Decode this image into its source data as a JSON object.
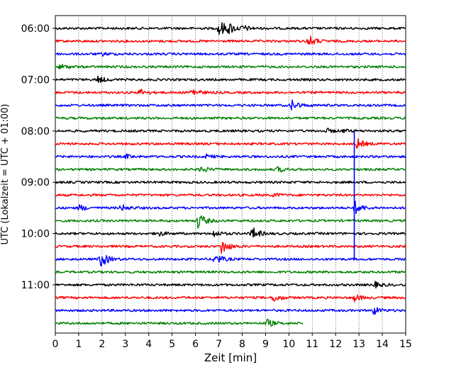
{
  "chart_data": {
    "type": "line",
    "title": "",
    "xlabel": "Zeit  [min]",
    "ylabel": "UTC (Lokalzeit = UTC + 01:00)",
    "xlim": [
      0,
      15
    ],
    "x_ticks": [
      "0",
      "1",
      "2",
      "3",
      "4",
      "5",
      "6",
      "7",
      "8",
      "9",
      "10",
      "11",
      "12",
      "13",
      "14",
      "15"
    ],
    "y_tick_labels": [
      "06:00",
      "07:00",
      "08:00",
      "09:00",
      "10:00",
      "11:00"
    ],
    "grid": "vertical-dotted",
    "trace_interval_minutes": 15,
    "trace_color_cycle": [
      "#000000",
      "#ff0000",
      "#0000ff",
      "#008000"
    ],
    "traces": [
      {
        "start": "06:00",
        "end_min": 15,
        "events": [
          {
            "t": 7.0,
            "amp": 14
          },
          {
            "t": 7.4,
            "amp": 7
          },
          {
            "t": 8.0,
            "amp": 4
          }
        ]
      },
      {
        "start": "06:15",
        "end_min": 15,
        "events": [
          {
            "t": 10.8,
            "amp": 10
          }
        ]
      },
      {
        "start": "06:30",
        "end_min": 15,
        "events": [
          {
            "t": 2.0,
            "amp": 2
          }
        ]
      },
      {
        "start": "06:45",
        "end_min": 15,
        "events": [
          {
            "t": 0.2,
            "amp": 4
          }
        ]
      },
      {
        "start": "07:00",
        "end_min": 15,
        "events": [
          {
            "t": 1.8,
            "amp": 5
          }
        ]
      },
      {
        "start": "07:15",
        "end_min": 15,
        "events": [
          {
            "t": 3.6,
            "amp": 5
          },
          {
            "t": 5.8,
            "amp": 7
          }
        ]
      },
      {
        "start": "07:30",
        "end_min": 15,
        "events": [
          {
            "t": 10.1,
            "amp": 8
          }
        ]
      },
      {
        "start": "07:45",
        "end_min": 15,
        "events": []
      },
      {
        "start": "08:00",
        "end_min": 15,
        "events": [
          {
            "t": 11.6,
            "amp": 3
          },
          {
            "t": 12.3,
            "amp": 2
          }
        ]
      },
      {
        "start": "08:15",
        "end_min": 15,
        "events": [
          {
            "t": 12.9,
            "amp": 7
          }
        ]
      },
      {
        "start": "08:30",
        "end_min": 15,
        "events": [
          {
            "t": 3.0,
            "amp": 3
          },
          {
            "t": 6.4,
            "amp": 3
          }
        ]
      },
      {
        "start": "08:45",
        "end_min": 15,
        "events": [
          {
            "t": 6.2,
            "amp": 5
          },
          {
            "t": 9.5,
            "amp": 4
          }
        ]
      },
      {
        "start": "09:00",
        "end_min": 15,
        "events": []
      },
      {
        "start": "09:15",
        "end_min": 15,
        "events": [
          {
            "t": 9.3,
            "amp": 3
          }
        ]
      },
      {
        "start": "09:30",
        "end_min": 15,
        "events": [
          {
            "t": 1.0,
            "amp": 5
          },
          {
            "t": 2.8,
            "amp": 5
          },
          {
            "t": 12.8,
            "amp": 10
          }
        ]
      },
      {
        "start": "09:45",
        "end_min": 15,
        "events": [
          {
            "t": 6.1,
            "amp": 12
          }
        ]
      },
      {
        "start": "10:00",
        "end_min": 15,
        "events": [
          {
            "t": 4.3,
            "amp": 5
          },
          {
            "t": 6.7,
            "amp": 6
          },
          {
            "t": 8.4,
            "amp": 10
          }
        ]
      },
      {
        "start": "10:15",
        "end_min": 15,
        "events": [
          {
            "t": 7.1,
            "amp": 12
          }
        ]
      },
      {
        "start": "10:30",
        "end_min": 15,
        "events": [
          {
            "t": 1.9,
            "amp": 14
          },
          {
            "t": 6.8,
            "amp": 9
          }
        ]
      },
      {
        "start": "10:45",
        "end_min": 15,
        "events": []
      },
      {
        "start": "11:00",
        "end_min": 15,
        "events": [
          {
            "t": 13.6,
            "amp": 5
          }
        ]
      },
      {
        "start": "11:15",
        "end_min": 15,
        "events": [
          {
            "t": 9.3,
            "amp": 7
          },
          {
            "t": 12.8,
            "amp": 5
          }
        ]
      },
      {
        "start": "11:30",
        "end_min": 15,
        "events": [
          {
            "t": 13.6,
            "amp": 6
          }
        ]
      },
      {
        "start": "11:45",
        "end_min": 10.6,
        "events": [
          {
            "t": 9.0,
            "amp": 7
          }
        ]
      }
    ],
    "connector": {
      "x": 12.8,
      "from": "08:00",
      "to": "10:30",
      "color": "#0000ff"
    }
  }
}
